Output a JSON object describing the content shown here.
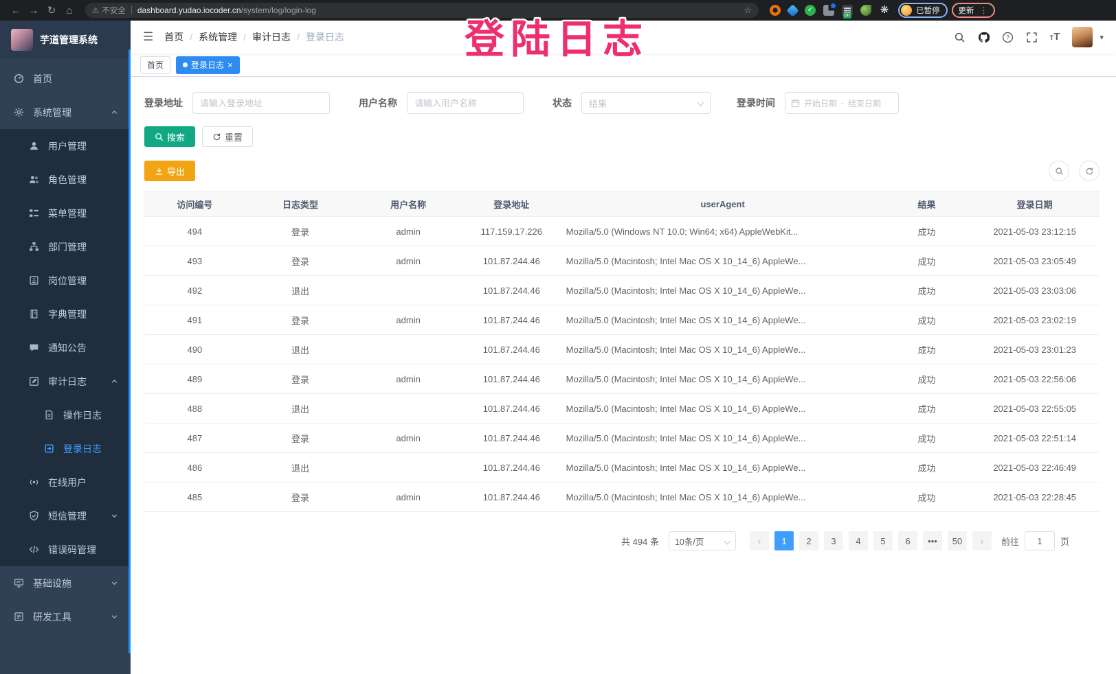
{
  "browser": {
    "security_warning": "不安全",
    "url_domain": "dashboard.yudao.iocoder.cn",
    "url_path": "/system/log/login-log",
    "extension_badge": "on",
    "profile_badge": "已暂停",
    "update_button": "更新"
  },
  "icons": {
    "back": "←",
    "forward": "→",
    "reload": "↻",
    "home": "⌂",
    "warning": "⚠",
    "star": "☆",
    "overflow_menu": "⋮",
    "hamburger": "☰",
    "caret_down": "▾",
    "tab_close": "×",
    "breadcrumb_separator": "/",
    "snowflake": "❋",
    "check": "✓",
    "font_large": "T",
    "font_small": "T",
    "prev": "‹",
    "next": "›"
  },
  "watermark": "登陆日志",
  "sidebar": {
    "title": "芋道管理系统",
    "menu": [
      {
        "key": "home",
        "label": "首页",
        "icon": "home-icon",
        "depth": 0
      },
      {
        "key": "system",
        "label": "系统管理",
        "icon": "gear-icon",
        "depth": 0,
        "arrow": "up"
      },
      {
        "key": "user-mgmt",
        "label": "用户管理",
        "icon": "user-icon",
        "depth": 1
      },
      {
        "key": "role-mgmt",
        "label": "角色管理",
        "icon": "users-icon",
        "depth": 1
      },
      {
        "key": "menu-mgmt",
        "label": "菜单管理",
        "icon": "menu-list-icon",
        "depth": 1
      },
      {
        "key": "dept-mgmt",
        "label": "部门管理",
        "icon": "org-tree-icon",
        "depth": 1
      },
      {
        "key": "post-mgmt",
        "label": "岗位管理",
        "icon": "badge-icon",
        "depth": 1
      },
      {
        "key": "dict-mgmt",
        "label": "字典管理",
        "icon": "dictionary-icon",
        "depth": 1
      },
      {
        "key": "notice",
        "label": "通知公告",
        "icon": "announcement-icon",
        "depth": 1
      },
      {
        "key": "audit-log",
        "label": "审计日志",
        "icon": "audit-log-icon",
        "depth": 1,
        "arrow": "up"
      },
      {
        "key": "operation-log",
        "label": "操作日志",
        "icon": "operation-log-icon",
        "depth": 2
      },
      {
        "key": "login-log",
        "label": "登录日志",
        "icon": "login-log-icon",
        "depth": 2,
        "active": true
      },
      {
        "key": "online-users",
        "label": "在线用户",
        "icon": "online-users-icon",
        "depth": 1
      },
      {
        "key": "sms-mgmt",
        "label": "短信管理",
        "icon": "sms-shield-icon",
        "depth": 1,
        "arrow": "down"
      },
      {
        "key": "error-code",
        "label": "错误码管理",
        "icon": "error-code-icon",
        "depth": 1
      },
      {
        "key": "infrastructure",
        "label": "基础设施",
        "icon": "infrastructure-icon",
        "depth": 0,
        "arrow": "down"
      },
      {
        "key": "dev-tools",
        "label": "研发工具",
        "icon": "dev-tools-icon",
        "depth": 0,
        "arrow": "down"
      }
    ]
  },
  "breadcrumb": [
    "首页",
    "系统管理",
    "审计日志",
    "登录日志"
  ],
  "tabs": [
    {
      "label": "首页",
      "active": false
    },
    {
      "label": "登录日志",
      "active": true
    }
  ],
  "filters": {
    "login_address_label": "登录地址",
    "login_address_placeholder": "请输入登录地址",
    "username_label": "用户名称",
    "username_placeholder": "请输入用户名称",
    "status_label": "状态",
    "status_placeholder": "结果",
    "login_time_label": "登录时间",
    "date_start_placeholder": "开始日期",
    "date_separator": "-",
    "date_end_placeholder": "结束日期",
    "search_button": "搜索",
    "reset_button": "重置"
  },
  "toolbar": {
    "export_button": "导出"
  },
  "table": {
    "columns": [
      "访问编号",
      "日志类型",
      "用户名称",
      "登录地址",
      "userAgent",
      "结果",
      "登录日期"
    ],
    "rows": [
      [
        "494",
        "登录",
        "admin",
        "117.159.17.226",
        "Mozilla/5.0 (Windows NT 10.0; Win64; x64) AppleWebKit...",
        "成功",
        "2021-05-03 23:12:15"
      ],
      [
        "493",
        "登录",
        "admin",
        "101.87.244.46",
        "Mozilla/5.0 (Macintosh; Intel Mac OS X 10_14_6) AppleWe...",
        "成功",
        "2021-05-03 23:05:49"
      ],
      [
        "492",
        "退出",
        "",
        "101.87.244.46",
        "Mozilla/5.0 (Macintosh; Intel Mac OS X 10_14_6) AppleWe...",
        "成功",
        "2021-05-03 23:03:06"
      ],
      [
        "491",
        "登录",
        "admin",
        "101.87.244.46",
        "Mozilla/5.0 (Macintosh; Intel Mac OS X 10_14_6) AppleWe...",
        "成功",
        "2021-05-03 23:02:19"
      ],
      [
        "490",
        "退出",
        "",
        "101.87.244.46",
        "Mozilla/5.0 (Macintosh; Intel Mac OS X 10_14_6) AppleWe...",
        "成功",
        "2021-05-03 23:01:23"
      ],
      [
        "489",
        "登录",
        "admin",
        "101.87.244.46",
        "Mozilla/5.0 (Macintosh; Intel Mac OS X 10_14_6) AppleWe...",
        "成功",
        "2021-05-03 22:56:06"
      ],
      [
        "488",
        "退出",
        "",
        "101.87.244.46",
        "Mozilla/5.0 (Macintosh; Intel Mac OS X 10_14_6) AppleWe...",
        "成功",
        "2021-05-03 22:55:05"
      ],
      [
        "487",
        "登录",
        "admin",
        "101.87.244.46",
        "Mozilla/5.0 (Macintosh; Intel Mac OS X 10_14_6) AppleWe...",
        "成功",
        "2021-05-03 22:51:14"
      ],
      [
        "486",
        "退出",
        "",
        "101.87.244.46",
        "Mozilla/5.0 (Macintosh; Intel Mac OS X 10_14_6) AppleWe...",
        "成功",
        "2021-05-03 22:46:49"
      ],
      [
        "485",
        "登录",
        "admin",
        "101.87.244.46",
        "Mozilla/5.0 (Macintosh; Intel Mac OS X 10_14_6) AppleWe...",
        "成功",
        "2021-05-03 22:28:45"
      ]
    ]
  },
  "pagination": {
    "total": "共 494 条",
    "page_size": "10条/页",
    "pages": [
      "1",
      "2",
      "3",
      "4",
      "5",
      "6",
      "•••",
      "50"
    ],
    "active_page": "1",
    "jumper_prefix": "前往",
    "jumper_value": "1",
    "jumper_suffix": "页"
  },
  "colors": {
    "accent_blue": "#409eff",
    "tag_active": "#2d8cf0",
    "search_button": "#11a983",
    "export_button": "#f2a412",
    "sidebar_bg": "#304156",
    "submenu_bg": "#1f2d3d",
    "watermark_pink": "#ed2f6e"
  }
}
